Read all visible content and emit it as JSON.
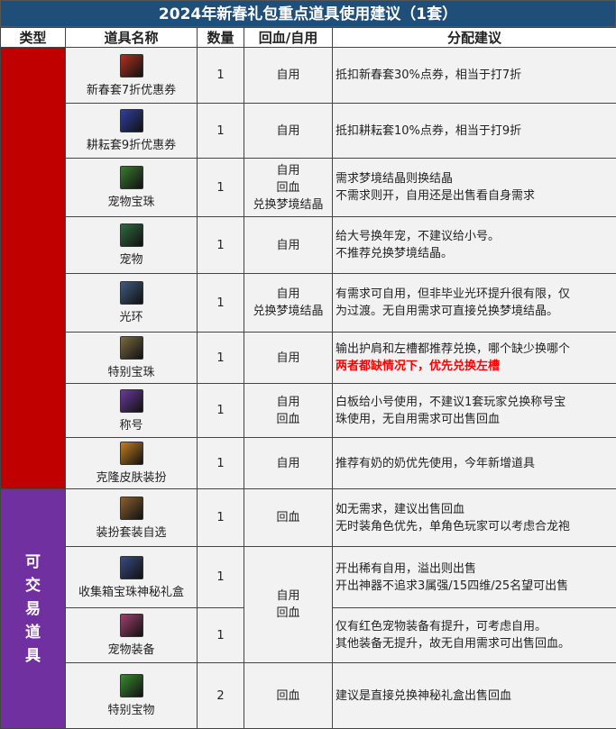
{
  "title": "2024年新春礼包重点道具使用建议（1套）",
  "headers": [
    "类型",
    "道具名称",
    "数量",
    "回血/自用",
    "分配建议"
  ],
  "type_groups": [
    {
      "label": "",
      "color": "#c00000"
    },
    {
      "label": "可交易道具",
      "color": "#7030a0"
    }
  ],
  "rows": [
    {
      "name": "新春套7折优惠券",
      "qty": "1",
      "use": [
        "自用"
      ],
      "advice": [
        "抵扣新春套30%点券，相当于打7折"
      ],
      "icon_color": "#b03020"
    },
    {
      "name": "耕耘套9折优惠券",
      "qty": "1",
      "use": [
        "自用"
      ],
      "advice": [
        "抵扣耕耘套10%点券，相当于打9折"
      ],
      "icon_color": "#3040a0"
    },
    {
      "name": "宠物宝珠",
      "qty": "1",
      "use": [
        "自用",
        "回血",
        "兑换梦境结晶"
      ],
      "advice": [
        "需求梦境结晶则换结晶",
        "不需求则开，自用还是出售看自身需求"
      ],
      "icon_color": "#3a7a30"
    },
    {
      "name": "宠物",
      "qty": "1",
      "use": [
        "自用"
      ],
      "advice": [
        "给大号换年宠，不建议给小号。",
        "不推荐兑换梦境结晶。"
      ],
      "icon_color": "#2f6a40"
    },
    {
      "name": "光环",
      "qty": "1",
      "use": [
        "自用",
        "兑换梦境结晶"
      ],
      "advice": [
        "有需求可自用，但非毕业光环提升很有限，仅",
        "为过渡。无自用需求可直接兑换梦境结晶。"
      ],
      "icon_color": "#405a80"
    },
    {
      "name": "特别宝珠",
      "qty": "1",
      "use": [
        "自用"
      ],
      "advice": [
        "输出护肩和左槽都推荐兑换，哪个缺少换哪个"
      ],
      "advice_highlight": "两者都缺情况下，优先兑换左槽",
      "icon_color": "#7a6a40"
    },
    {
      "name": "称号",
      "qty": "1",
      "use": [
        "自用",
        "回血"
      ],
      "advice": [
        "白板给小号使用，不建议1套玩家兑换称号宝",
        "珠使用，无自用需求可出售回血"
      ],
      "icon_color": "#6a3a9a"
    },
    {
      "name": "克隆皮肤装扮",
      "qty": "1",
      "use": [
        "自用"
      ],
      "advice": [
        "推荐有奶的奶优先使用，今年新增道具"
      ],
      "icon_color": "#c08020"
    },
    {
      "name": "装扮套装自选",
      "qty": "1",
      "use": [
        "回血"
      ],
      "advice": [
        "如无需求，建议出售回血",
        "无时装角色优先，单角色玩家可以考虑合龙袍"
      ],
      "icon_color": "#8a6030"
    },
    {
      "name": "收集箱宝珠神秘礼盒",
      "qty": "1",
      "use": [
        "自用",
        "回血"
      ],
      "advice": [
        "开出稀有自用，溢出则出售",
        "开出神器不追求3属强/15四维/25名望可出售"
      ],
      "icon_color": "#3a4a80"
    },
    {
      "name": "宠物装备",
      "qty": "1",
      "use": [],
      "advice": [
        "仅有红色宠物装备有提升，可考虑自用。",
        "其他装备无提升，故无自用需求可出售回血。"
      ],
      "icon_color": "#a04070"
    },
    {
      "name": "特别宝物",
      "qty": "2",
      "use": [
        "回血"
      ],
      "advice": [
        "建议是直接兑换神秘礼盒出售回血"
      ],
      "icon_color": "#3a8a30"
    }
  ]
}
